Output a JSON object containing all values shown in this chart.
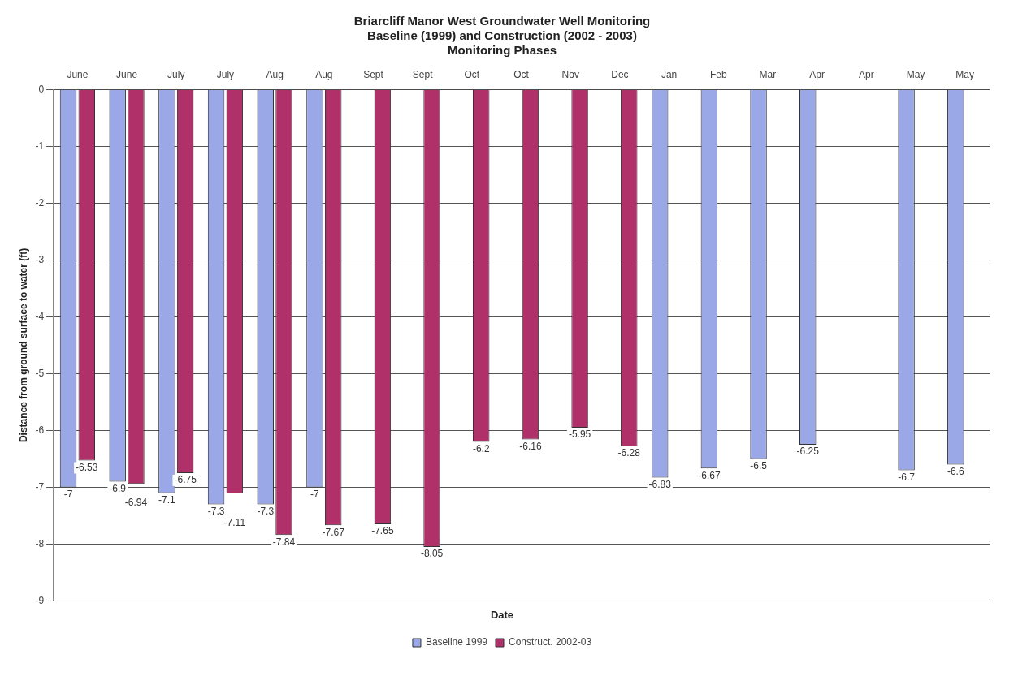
{
  "chart_data": {
    "type": "bar",
    "title": "Briarcliff Manor West Groundwater Well Monitoring\nBaseline (1999) and Construction (2002 - 2003)\nMonitoring Phases",
    "xlabel": "Date",
    "ylabel": "Distance from ground surface to water (ft)",
    "categories": [
      "June",
      "June",
      "July",
      "July",
      "Aug",
      "Aug",
      "Sept",
      "Sept",
      "Oct",
      "Oct",
      "Nov",
      "Dec",
      "Jan",
      "Feb",
      "Mar",
      "Apr",
      "Apr",
      "May",
      "May"
    ],
    "series": [
      {
        "name": "Baseline 1999",
        "color": "#9aa8e8",
        "values": [
          -7,
          -6.9,
          -7.1,
          -7.3,
          -7.3,
          -7,
          null,
          null,
          null,
          null,
          null,
          null,
          -6.83,
          -6.67,
          -6.5,
          -6.25,
          null,
          -6.7,
          -6.6
        ]
      },
      {
        "name": "Construct. 2002-03",
        "color": "#b0306a",
        "values": [
          -6.53,
          -6.94,
          -6.75,
          -7.11,
          -7.84,
          -7.67,
          -7.65,
          -8.05,
          -6.2,
          -6.16,
          -5.95,
          -6.28,
          null,
          null,
          null,
          null,
          null,
          null,
          null
        ]
      }
    ],
    "ylim": [
      -9,
      0
    ],
    "yticks": [
      0,
      -1,
      -2,
      -3,
      -4,
      -5,
      -6,
      -7,
      -8,
      -9
    ],
    "grid": "y",
    "legend": "bottom",
    "data_labels": true
  }
}
